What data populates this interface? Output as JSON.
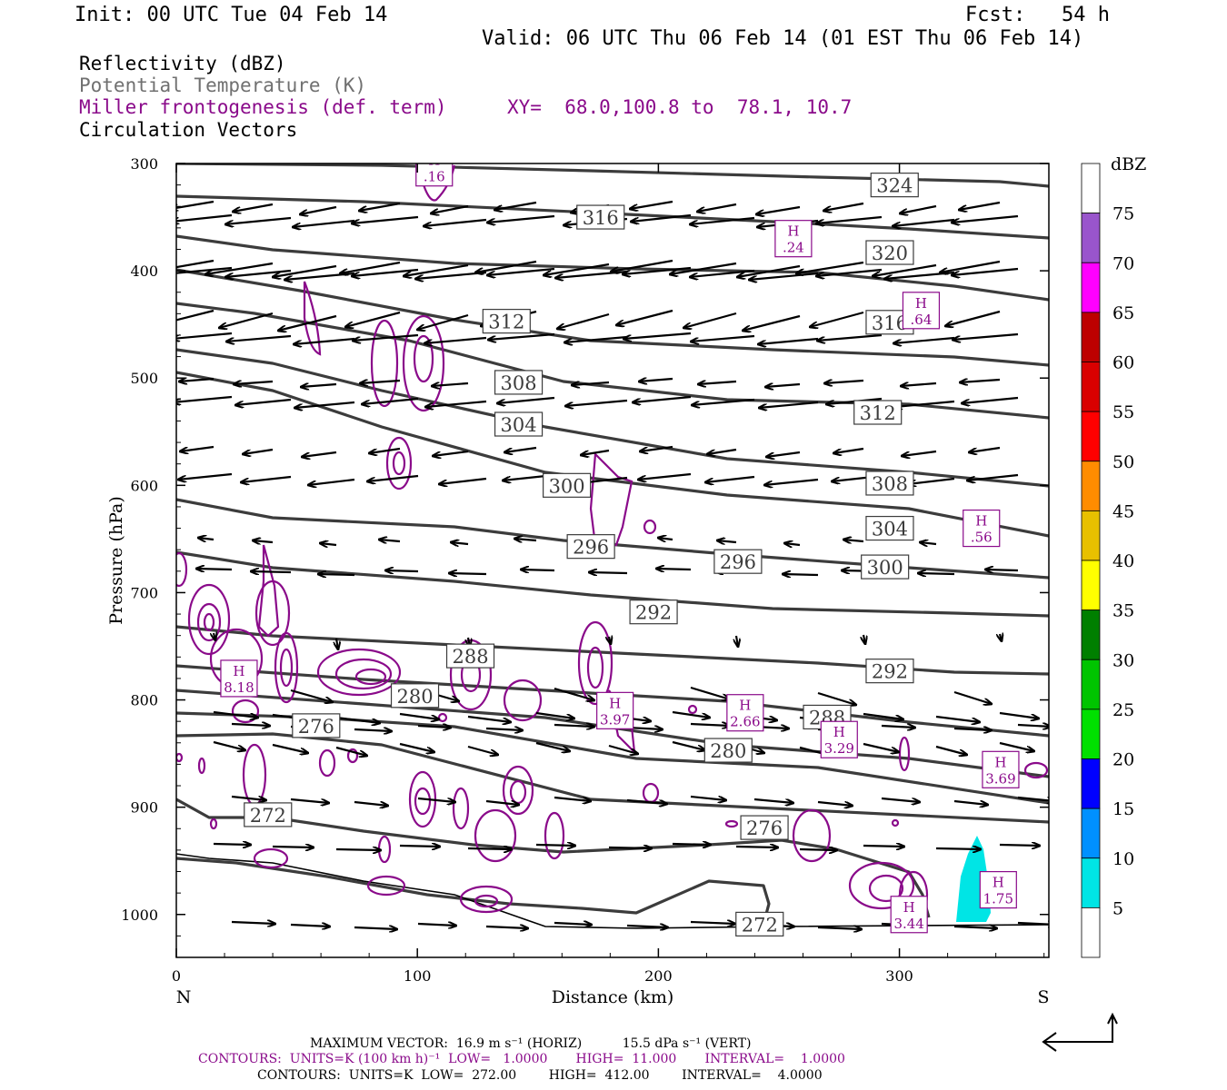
{
  "header": {
    "init": "Init: 00 UTC Tue 04 Feb 14",
    "fcst": "Fcst:   54 h",
    "valid": "Valid: 06 UTC Thu 06 Feb 14 (01 EST Thu 06 Feb 14)"
  },
  "legend": {
    "reflectivity": "Reflectivity (dBZ)",
    "theta": "Potential Temperature (K)",
    "miller": "Miller frontogenesis (def. term)",
    "xy": "XY=  68.0,100.8 to  78.1, 10.7",
    "vectors": "Circulation Vectors"
  },
  "colors": {
    "theta": "#3c3c3c",
    "miller": "#8a0a8a",
    "refl_fill": "#00e5e5",
    "vectors": "#000000"
  },
  "chart_data": {
    "type": "cross-section",
    "xlabel": "Distance (km)",
    "ylabel": "Pressure (hPa)",
    "xlim": [
      0,
      362
    ],
    "ylim": [
      1040,
      300
    ],
    "xticks": [
      0,
      100,
      200,
      300
    ],
    "yticks": [
      300,
      400,
      500,
      600,
      700,
      800,
      900,
      1000
    ],
    "end_labels": {
      "left": "N",
      "right": "S"
    },
    "theta_labels": [
      {
        "x": 298,
        "p": 320,
        "text": "324"
      },
      {
        "x": 176,
        "p": 350,
        "text": "316"
      },
      {
        "x": 296,
        "p": 383,
        "text": "320"
      },
      {
        "x": 296,
        "p": 448,
        "text": "316"
      },
      {
        "x": 137,
        "p": 447,
        "text": "312"
      },
      {
        "x": 142,
        "p": 504,
        "text": "308"
      },
      {
        "x": 142,
        "p": 543,
        "text": "304"
      },
      {
        "x": 291,
        "p": 532,
        "text": "312"
      },
      {
        "x": 162,
        "p": 600,
        "text": "300"
      },
      {
        "x": 296,
        "p": 598,
        "text": "308"
      },
      {
        "x": 296,
        "p": 640,
        "text": "304"
      },
      {
        "x": 172,
        "p": 657,
        "text": "296"
      },
      {
        "x": 233,
        "p": 671,
        "text": "296"
      },
      {
        "x": 294,
        "p": 676,
        "text": "300"
      },
      {
        "x": 198,
        "p": 718,
        "text": "292"
      },
      {
        "x": 122,
        "p": 759,
        "text": "288"
      },
      {
        "x": 296,
        "p": 773,
        "text": "292"
      },
      {
        "x": 99,
        "p": 796,
        "text": "280"
      },
      {
        "x": 58,
        "p": 824,
        "text": "276"
      },
      {
        "x": 229,
        "p": 847,
        "text": "280"
      },
      {
        "x": 270,
        "p": 816,
        "text": "288"
      },
      {
        "x": 38,
        "p": 907,
        "text": "272"
      },
      {
        "x": 244,
        "p": 919,
        "text": "276"
      },
      {
        "x": 242,
        "p": 1009,
        "text": "272"
      }
    ],
    "frontogenesis_maxima": [
      {
        "x": 107,
        "p": 304,
        "label": "H",
        "value": ".16"
      },
      {
        "x": 256,
        "p": 370,
        "label": "H",
        "value": ".24"
      },
      {
        "x": 309,
        "p": 437,
        "label": "H",
        "value": ".64"
      },
      {
        "x": 334,
        "p": 640,
        "label": "H",
        "value": ".56"
      },
      {
        "x": 26,
        "p": 780,
        "label": "H",
        "value": "8.18"
      },
      {
        "x": 182,
        "p": 810,
        "label": "H",
        "value": "3.97"
      },
      {
        "x": 236,
        "p": 812,
        "label": "H",
        "value": "2.66"
      },
      {
        "x": 275,
        "p": 837,
        "label": "H",
        "value": "3.29"
      },
      {
        "x": 342,
        "p": 865,
        "label": "H",
        "value": "3.69"
      },
      {
        "x": 341,
        "p": 977,
        "label": "H",
        "value": "1.75"
      },
      {
        "x": 304,
        "p": 1000,
        "label": "H",
        "value": "3.44"
      }
    ],
    "reflectivity_scale": {
      "label": "dBZ",
      "levels": [
        "5",
        "10",
        "15",
        "20",
        "25",
        "30",
        "35",
        "40",
        "45",
        "50",
        "55",
        "60",
        "65",
        "70",
        "75"
      ],
      "colors": [
        "#ffffff",
        "#00e5e5",
        "#0090ff",
        "#0000ff",
        "#00e000",
        "#00c400",
        "#007f00",
        "#ffff00",
        "#e8c000",
        "#ff8c00",
        "#ff0000",
        "#d90000",
        "#bd0000",
        "#ff00ff",
        "#9955cc",
        "#ffffff"
      ]
    }
  },
  "footer": {
    "max_vector": "MAXIMUM VECTOR:  16.9 m s⁻¹ (HORIZ)          15.5 dPa s⁻¹ (VERT)",
    "contours_miller": "CONTOURS:  UNITS=K (100 km h)⁻¹  LOW=   1.0000       HIGH=  11.000       INTERVAL=    1.0000",
    "contours_theta": "CONTOURS:  UNITS=K  LOW=  272.00        HIGH=  412.00        INTERVAL=    4.0000"
  }
}
